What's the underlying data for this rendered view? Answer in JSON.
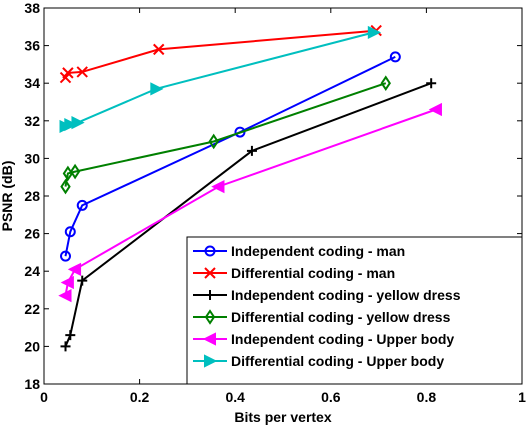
{
  "chart_data": {
    "type": "line",
    "title": "",
    "xlabel": "Bits per vertex",
    "ylabel": "PSNR (dB)",
    "xlim": [
      0,
      1
    ],
    "ylim": [
      18,
      38
    ],
    "xticks": [
      0,
      0.2,
      0.4,
      0.6,
      0.8,
      1
    ],
    "xtick_labels": [
      "0",
      "0.2",
      "0.4",
      "0.6",
      "0.8",
      "1"
    ],
    "yticks": [
      18,
      20,
      22,
      24,
      26,
      28,
      30,
      32,
      34,
      36,
      38
    ],
    "ytick_labels": [
      "18",
      "20",
      "22",
      "24",
      "26",
      "28",
      "30",
      "32",
      "34",
      "36",
      "38"
    ],
    "grid": false,
    "legend_position": "bottom-right",
    "series": [
      {
        "name": "Independent coding - man",
        "color": "#0000ff",
        "marker": "circle",
        "x": [
          0.045,
          0.055,
          0.08,
          0.41,
          0.735
        ],
        "y": [
          24.8,
          26.1,
          27.5,
          31.4,
          35.4
        ]
      },
      {
        "name": "Differential coding - man",
        "color": "#ff0000",
        "marker": "x",
        "x": [
          0.045,
          0.05,
          0.08,
          0.24,
          0.695
        ],
        "y": [
          34.3,
          34.55,
          34.6,
          35.8,
          36.8
        ]
      },
      {
        "name": "Independent coding - yellow dress",
        "color": "#000000",
        "marker": "plus",
        "x": [
          0.045,
          0.055,
          0.08,
          0.435,
          0.81
        ],
        "y": [
          20.0,
          20.6,
          23.5,
          30.4,
          34.0
        ]
      },
      {
        "name": "Differential coding - yellow dress",
        "color": "#008000",
        "marker": "diamond",
        "x": [
          0.045,
          0.05,
          0.065,
          0.355,
          0.715
        ],
        "y": [
          28.5,
          29.2,
          29.3,
          30.9,
          34.0
        ]
      },
      {
        "name": "Independent coding - Upper body",
        "color": "#ff00ff",
        "marker": "triangle-left",
        "x": [
          0.045,
          0.05,
          0.065,
          0.365,
          0.82
        ],
        "y": [
          22.7,
          23.4,
          24.1,
          28.5,
          32.6
        ]
      },
      {
        "name": "Differential coding - Upper body",
        "color": "#00bfbf",
        "marker": "triangle-right",
        "x": [
          0.045,
          0.055,
          0.07,
          0.235,
          0.69
        ],
        "y": [
          31.7,
          31.8,
          31.9,
          33.7,
          36.7
        ]
      }
    ]
  }
}
